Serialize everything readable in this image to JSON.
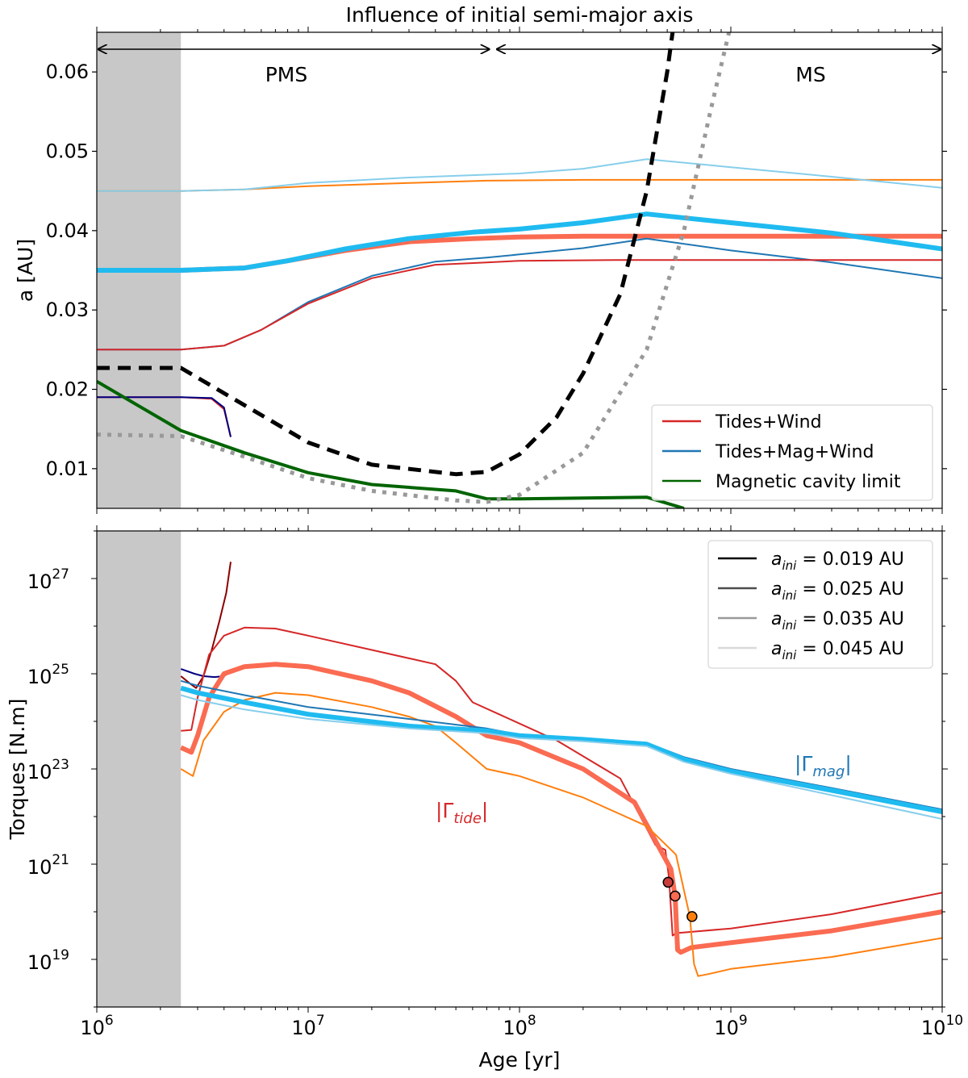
{
  "chart_data": [
    {
      "type": "line",
      "title": "Influence of initial semi-major axis",
      "ylabel": "a [AU]",
      "xscale": "log",
      "xlim": [
        1000000,
        10000000000
      ],
      "ylim": [
        0.005,
        0.065
      ],
      "yticks": [
        0.01,
        0.02,
        0.03,
        0.04,
        0.05,
        0.06
      ],
      "ytick_labels": [
        "0.01",
        "0.02",
        "0.03",
        "0.04",
        "0.05",
        "0.06"
      ],
      "shaded_region_x": [
        1000000,
        2500000
      ],
      "phase_labels": {
        "pms": "PMS",
        "ms": "MS"
      },
      "phase_arrows": [
        [
          1000000,
          73000000
        ],
        [
          77000000,
          10000000000
        ]
      ],
      "legend": [
        {
          "label": "Tides+Wind",
          "color": "#d62728"
        },
        {
          "label": "Tides+Mag+Wind",
          "color": "#1f77b4"
        },
        {
          "label": "Magnetic cavity limit",
          "color": "#006400"
        }
      ],
      "series": [
        {
          "id": "a045-wind",
          "color": "#ff7f0e",
          "width": 2,
          "x": [
            1000000.0,
            2500000.0,
            5000000.0,
            10000000.0,
            30000000.0,
            70000000.0,
            200000000.0,
            1000000000.0,
            10000000000.0
          ],
          "y": [
            0.045,
            0.045,
            0.0452,
            0.0456,
            0.046,
            0.0463,
            0.0464,
            0.0464,
            0.0464
          ]
        },
        {
          "id": "a045-mag",
          "color": "#87ceeb",
          "width": 2,
          "x": [
            1000000.0,
            2500000.0,
            5000000.0,
            10000000.0,
            30000000.0,
            100000000.0,
            200000000.0,
            400000000.0,
            1000000000.0,
            3000000000.0,
            10000000000.0
          ],
          "y": [
            0.045,
            0.045,
            0.0452,
            0.046,
            0.0467,
            0.0472,
            0.0478,
            0.049,
            0.048,
            0.0468,
            0.0454
          ]
        },
        {
          "id": "a035-wind",
          "color": "#fa6b52",
          "width": 6,
          "x": [
            1000000.0,
            2500000.0,
            5000000.0,
            8000000.0,
            15000000.0,
            30000000.0,
            60000000.0,
            100000000.0,
            200000000.0,
            500000000.0,
            10000000000.0
          ],
          "y": [
            0.035,
            0.035,
            0.0353,
            0.0362,
            0.0375,
            0.0386,
            0.039,
            0.0392,
            0.0393,
            0.0393,
            0.0393
          ]
        },
        {
          "id": "a035-mag",
          "color": "#1fbbf0",
          "width": 6,
          "x": [
            1000000.0,
            2500000.0,
            5000000.0,
            8000000.0,
            15000000.0,
            30000000.0,
            60000000.0,
            100000000.0,
            200000000.0,
            400000000.0,
            1000000000.0,
            3000000000.0,
            10000000000.0
          ],
          "y": [
            0.035,
            0.035,
            0.0353,
            0.0362,
            0.0377,
            0.039,
            0.0398,
            0.0402,
            0.041,
            0.0421,
            0.041,
            0.0397,
            0.0377
          ]
        },
        {
          "id": "a025-mag",
          "color": "#1f77b4",
          "width": 2,
          "x": [
            1000000.0,
            2500000.0,
            4000000.0,
            6000000.0,
            10000000.0,
            20000000.0,
            40000000.0,
            70000000.0,
            100000000.0,
            200000000.0,
            400000000.0,
            1000000000.0,
            3000000000.0,
            10000000000.0
          ],
          "y": [
            0.025,
            0.025,
            0.0255,
            0.0275,
            0.031,
            0.0343,
            0.0361,
            0.0366,
            0.037,
            0.0378,
            0.039,
            0.0375,
            0.036,
            0.034
          ]
        },
        {
          "id": "a025-wind",
          "color": "#d62728",
          "width": 2,
          "x": [
            1000000.0,
            2500000.0,
            4000000.0,
            6000000.0,
            10000000.0,
            20000000.0,
            40000000.0,
            70000000.0,
            100000000.0,
            300000000.0,
            10000000000.0
          ],
          "y": [
            0.025,
            0.025,
            0.0255,
            0.0275,
            0.0308,
            0.034,
            0.0357,
            0.036,
            0.0362,
            0.0363,
            0.0363
          ]
        },
        {
          "id": "a019",
          "color": "#d62728",
          "width": 2,
          "x": [
            1000000.0,
            2500000.0,
            3500000.0,
            4000000.0,
            4300000.0
          ],
          "y": [
            0.019,
            0.019,
            0.0188,
            0.0175,
            0.014
          ]
        },
        {
          "id": "a019-mag",
          "color": "#000080",
          "width": 2,
          "x": [
            1000000.0,
            2500000.0,
            3500000.0,
            4000000.0,
            4300000.0
          ],
          "y": [
            0.019,
            0.019,
            0.0189,
            0.0177,
            0.014
          ]
        },
        {
          "id": "cavity",
          "color": "#006400",
          "width": 4,
          "x": [
            1000000.0,
            2500000.0,
            5000000.0,
            10000000.0,
            20000000.0,
            50000000.0,
            70000000.0,
            100000000.0,
            200000000.0,
            400000000.0,
            600000000.0
          ],
          "y": [
            0.021,
            0.0148,
            0.012,
            0.0095,
            0.008,
            0.0072,
            0.0062,
            0.0062,
            0.0063,
            0.0064,
            0.005
          ]
        },
        {
          "id": "corotation",
          "color": "#000000",
          "width": 5,
          "dash": "16,10",
          "x": [
            1000000.0,
            2500000.0,
            5000000.0,
            10000000.0,
            20000000.0,
            50000000.0,
            70000000.0,
            100000000.0,
            150000000.0,
            200000000.0,
            300000000.0,
            400000000.0,
            500000000.0,
            530000000.0
          ],
          "y": [
            0.0227,
            0.0227,
            0.018,
            0.0133,
            0.0105,
            0.0093,
            0.0096,
            0.0118,
            0.0165,
            0.022,
            0.032,
            0.045,
            0.06,
            0.065
          ]
        },
        {
          "id": "roche",
          "color": "#999999",
          "width": 5,
          "dash": "5,8",
          "x": [
            1000000.0,
            2500000.0,
            5000000.0,
            10000000.0,
            20000000.0,
            50000000.0,
            70000000.0,
            100000000.0,
            200000000.0,
            400000000.0,
            600000000.0,
            800000000.0,
            980000000.0
          ],
          "y": [
            0.0143,
            0.0141,
            0.0115,
            0.0088,
            0.0072,
            0.006,
            0.0058,
            0.0067,
            0.012,
            0.025,
            0.04,
            0.055,
            0.065
          ]
        }
      ]
    },
    {
      "type": "line",
      "xlabel": "Age [yr]",
      "ylabel": "Torques [N.m]",
      "xscale": "log",
      "yscale": "log",
      "xlim": [
        1000000,
        10000000000
      ],
      "ylim_log10": [
        18,
        28
      ],
      "xticks_log10": [
        6,
        7,
        8,
        9,
        10
      ],
      "yticks_log10": [
        19,
        21,
        23,
        25,
        27
      ],
      "tick_base": "10",
      "shaded_region_x": [
        1000000,
        2500000
      ],
      "annotations": {
        "tide": "|Γ",
        "tide_sub": "tide",
        "mag": "|Γ",
        "mag_sub": "mag",
        "bar": "|"
      },
      "legend": [
        {
          "label": "a",
          "sub": "ini",
          "value": " = 0.019 AU",
          "color": "#000000"
        },
        {
          "label": "a",
          "sub": "ini",
          "value": " = 0.025 AU",
          "color": "#4d4d4d"
        },
        {
          "label": "a",
          "sub": "ini",
          "value": " = 0.035 AU",
          "color": "#999999"
        },
        {
          "label": "a",
          "sub": "ini",
          "value": " = 0.045 AU",
          "color": "#d9d9d9"
        }
      ],
      "markers": [
        {
          "x": 505000000.0,
          "y_log10": 20.62,
          "color": "#c83c3c"
        },
        {
          "x": 545000000.0,
          "y_log10": 20.33,
          "color": "#fa6b52"
        },
        {
          "x": 655000000.0,
          "y_log10": 19.9,
          "color": "#ff7f0e"
        }
      ],
      "series": [
        {
          "id": "tide-019",
          "color": "#8b0000",
          "width": 2,
          "x": [
            2500000.0,
            2750000.0,
            2950000.0,
            3200000.0,
            3500000.0,
            3800000.0,
            4100000.0,
            4300000.0
          ],
          "y_log10": [
            24.95,
            24.8,
            24.7,
            24.95,
            25.5,
            26.1,
            26.7,
            27.35
          ]
        },
        {
          "id": "mag-019",
          "color": "#000080",
          "width": 2,
          "x": [
            2500000.0,
            2900000.0,
            3200000.0,
            3600000.0,
            4000000.0,
            4300000.0
          ],
          "y_log10": [
            25.1,
            25.0,
            24.95,
            24.93,
            24.95,
            25.05
          ]
        },
        {
          "id": "tide-025",
          "color": "#d62728",
          "width": 2,
          "x": [
            2500000.0,
            2800000.0,
            3000000.0,
            3400000.0,
            4000000.0,
            5000000.0,
            7000000.0,
            10000000.0,
            20000000.0,
            40000000.0,
            50000000.0,
            60000000.0,
            80000000.0,
            150000000.0,
            300000000.0,
            440000000.0,
            490000000.0,
            510000000.0,
            530000000.0,
            550000000.0,
            1000000000.0,
            3000000000.0,
            10000000000.0
          ],
          "y_log10": [
            23.8,
            23.82,
            24.5,
            25.4,
            25.8,
            25.97,
            25.95,
            25.8,
            25.5,
            25.2,
            24.85,
            24.4,
            24.15,
            23.6,
            22.8,
            21.4,
            21.3,
            20.7,
            19.5,
            19.55,
            19.65,
            19.95,
            20.4
          ]
        },
        {
          "id": "tide-035",
          "color": "#fa6b52",
          "width": 6,
          "x": [
            2500000.0,
            2800000.0,
            3000000.0,
            3400000.0,
            4000000.0,
            5000000.0,
            7000000.0,
            10000000.0,
            20000000.0,
            30000000.0,
            50000000.0,
            70000000.0,
            100000000.0,
            200000000.0,
            350000000.0,
            520000000.0,
            545000000.0,
            560000000.0,
            580000000.0,
            650000000.0,
            1000000000.0,
            3000000000.0,
            10000000000.0
          ],
          "y_log10": [
            23.45,
            23.35,
            23.7,
            24.5,
            25.0,
            25.15,
            25.2,
            25.15,
            24.85,
            24.6,
            24.1,
            23.7,
            23.55,
            23.0,
            22.3,
            20.9,
            20.33,
            19.2,
            19.15,
            19.25,
            19.35,
            19.6,
            20.0
          ]
        },
        {
          "id": "tide-045",
          "color": "#ff7f0e",
          "width": 2,
          "x": [
            2500000.0,
            2850000.0,
            3200000.0,
            4000000.0,
            5000000.0,
            7000000.0,
            10000000.0,
            20000000.0,
            30000000.0,
            40000000.0,
            50000000.0,
            70000000.0,
            100000000.0,
            200000000.0,
            400000000.0,
            550000000.0,
            640000000.0,
            670000000.0,
            700000000.0,
            800000000.0,
            1000000000.0,
            3000000000.0,
            10000000000.0
          ],
          "y_log10": [
            23.0,
            22.85,
            23.6,
            24.2,
            24.45,
            24.6,
            24.55,
            24.3,
            24.1,
            23.9,
            23.55,
            23.0,
            22.85,
            22.4,
            21.8,
            21.2,
            19.9,
            18.9,
            18.65,
            18.7,
            18.8,
            19.05,
            19.45
          ]
        },
        {
          "id": "mag-025",
          "color": "#1f77b4",
          "width": 2,
          "x": [
            2500000.0,
            3000000.0,
            5000000.0,
            10000000.0,
            30000000.0,
            70000000.0,
            100000000.0,
            200000000.0,
            400000000.0,
            600000000.0,
            1000000000.0,
            3000000000.0,
            10000000000.0
          ],
          "y_log10": [
            24.85,
            24.75,
            24.55,
            24.3,
            24.05,
            23.85,
            23.72,
            23.65,
            23.55,
            23.25,
            23.0,
            22.6,
            22.15
          ]
        },
        {
          "id": "mag-035",
          "color": "#1fbbf0",
          "width": 6,
          "x": [
            2500000.0,
            3000000.0,
            5000000.0,
            10000000.0,
            30000000.0,
            70000000.0,
            100000000.0,
            200000000.0,
            400000000.0,
            600000000.0,
            1000000000.0,
            3000000000.0,
            10000000000.0
          ],
          "y_log10": [
            24.7,
            24.6,
            24.4,
            24.15,
            23.9,
            23.8,
            23.7,
            23.62,
            23.52,
            23.2,
            22.95,
            22.55,
            22.1
          ]
        },
        {
          "id": "mag-045",
          "color": "#87ceeb",
          "width": 2,
          "x": [
            2500000.0,
            3000000.0,
            5000000.0,
            10000000.0,
            30000000.0,
            70000000.0,
            100000000.0,
            200000000.0,
            400000000.0,
            600000000.0,
            1000000000.0,
            3000000000.0,
            10000000000.0
          ],
          "y_log10": [
            24.55,
            24.45,
            24.25,
            24.05,
            23.85,
            23.75,
            23.65,
            23.58,
            23.48,
            23.15,
            22.9,
            22.45,
            21.95
          ]
        }
      ]
    }
  ]
}
